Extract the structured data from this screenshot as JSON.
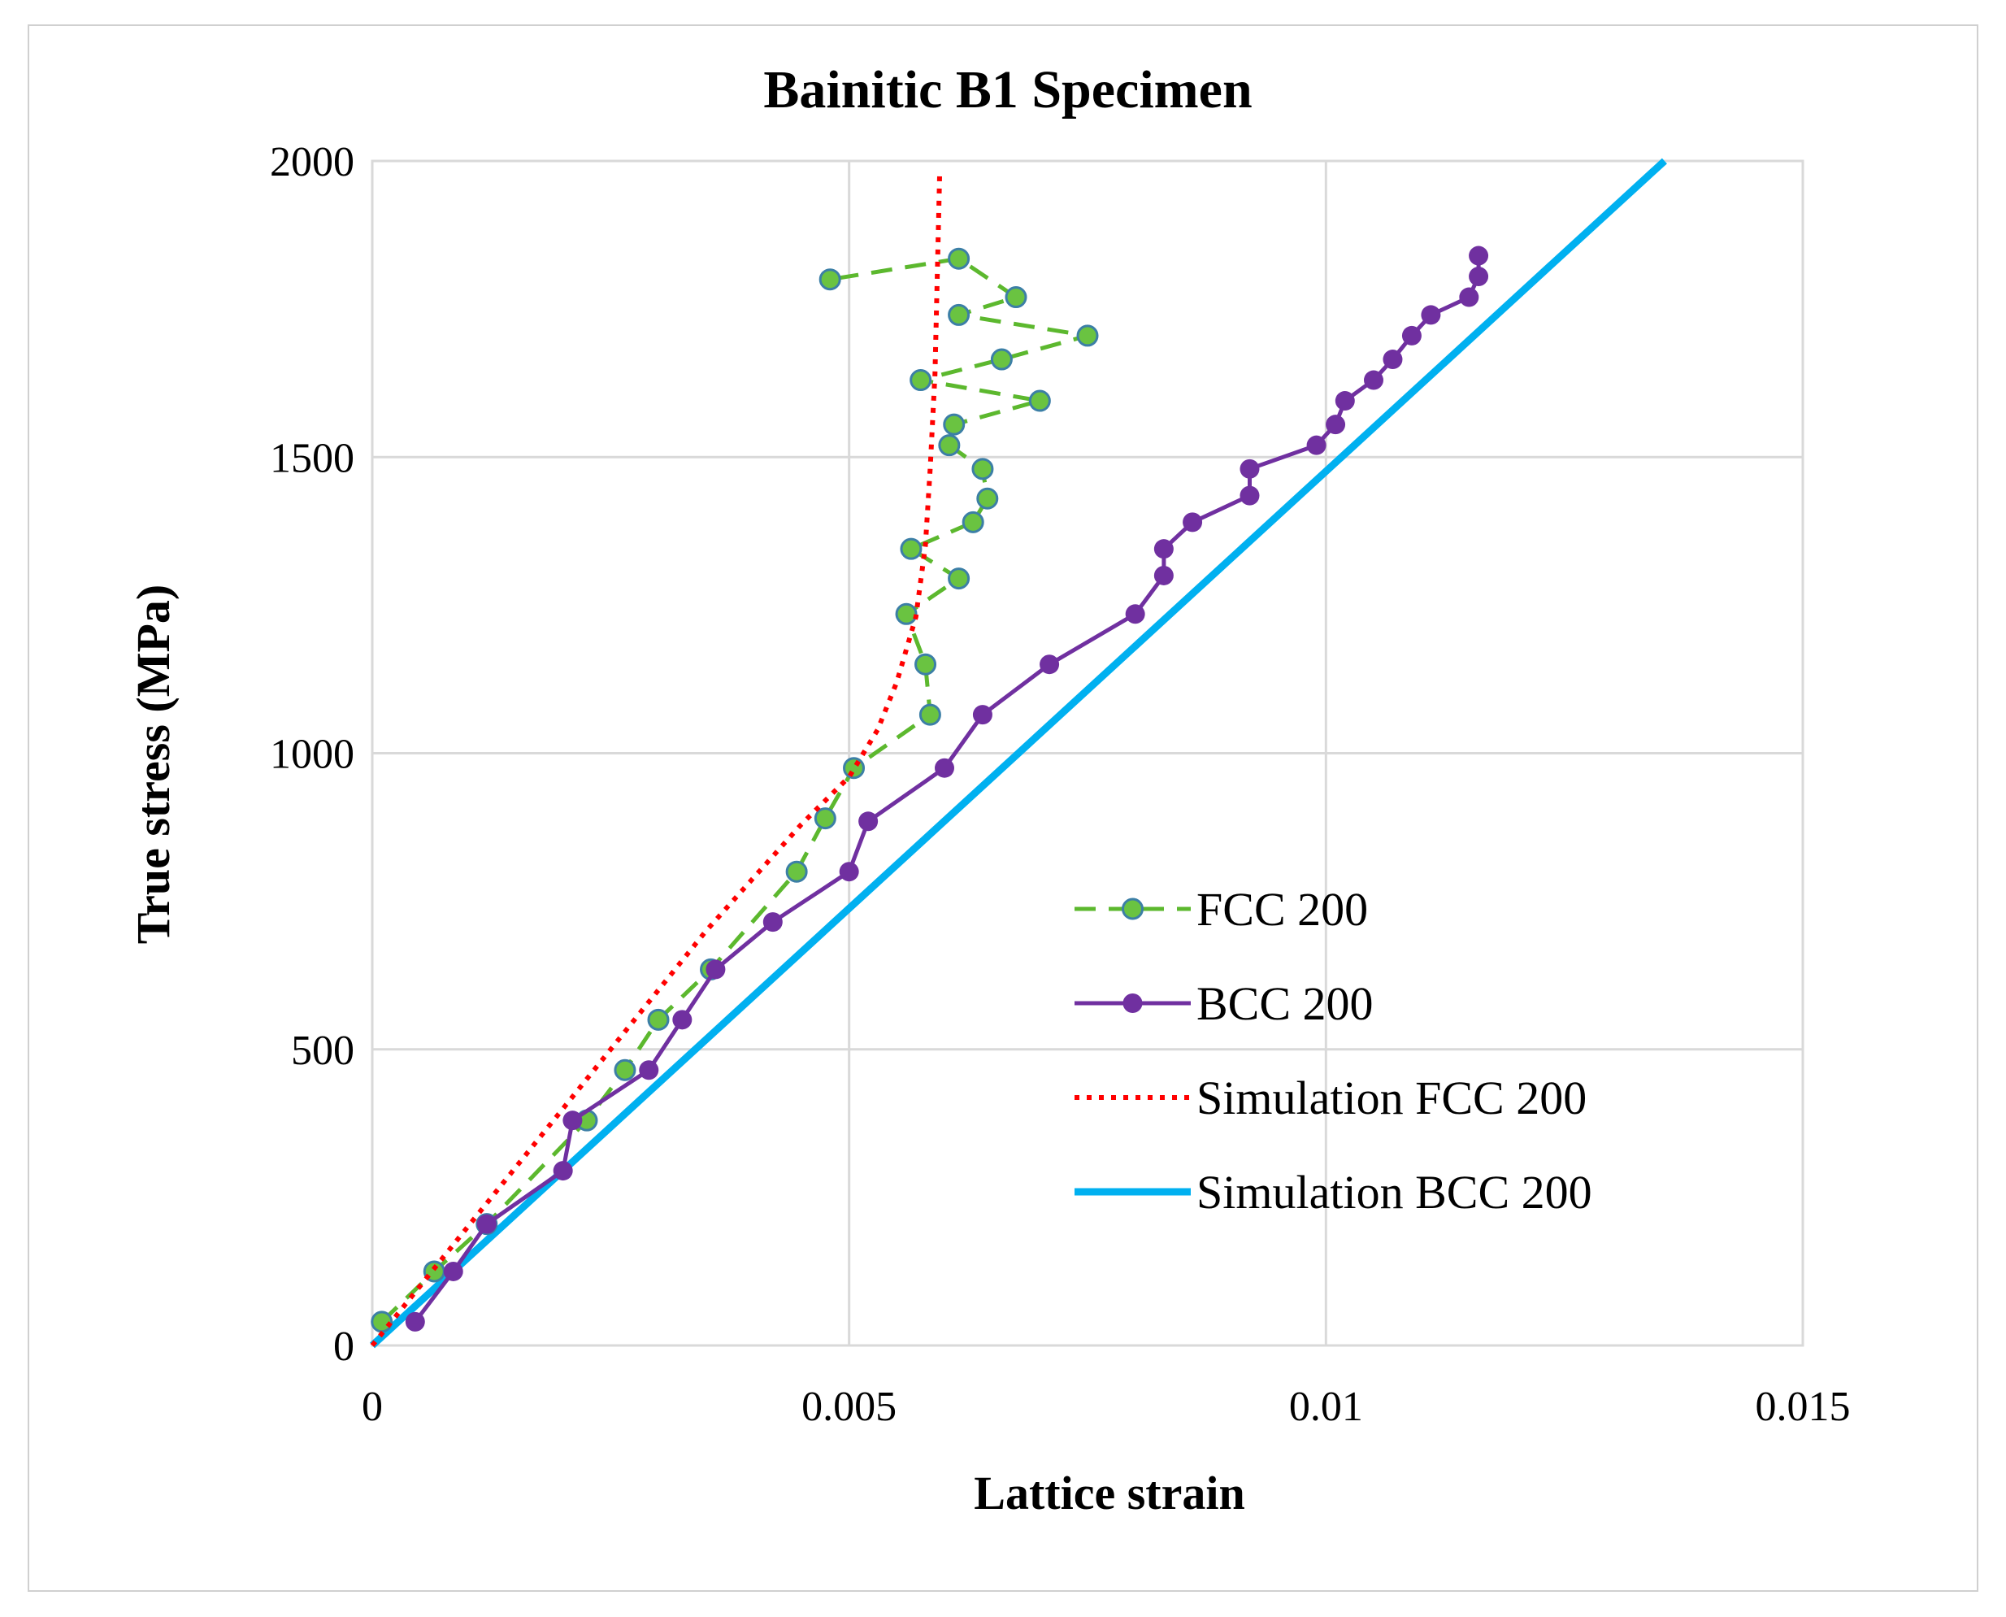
{
  "chart_data": {
    "type": "scatter",
    "title": "Bainitic B1 Specimen",
    "xlabel": "Lattice strain",
    "ylabel": "True stress (MPa)",
    "xlim": [
      0,
      0.015
    ],
    "ylim": [
      0,
      2000
    ],
    "xticks": [
      0,
      0.005,
      0.01,
      0.015
    ],
    "xtick_labels": [
      "0",
      "0.005",
      "0.01",
      "0.015"
    ],
    "yticks": [
      0,
      500,
      1000,
      1500,
      2000
    ],
    "ytick_labels": [
      "0",
      "500",
      "1000",
      "1500",
      "2000"
    ],
    "grid": true,
    "legend_position": "center-right",
    "series": [
      {
        "name": "FCC 200",
        "style": "dashed-markers",
        "color": "#5cb82e",
        "marker_color": "#6ac341",
        "marker_edge": "#3c7fa6",
        "x": [
          0.0001,
          0.00065,
          0.0012,
          0.00225,
          0.00265,
          0.003,
          0.00355,
          0.00445,
          0.00475,
          0.00505,
          0.00585,
          0.0058,
          0.0056,
          0.00615,
          0.00565,
          0.0063,
          0.00645,
          0.0064,
          0.00605,
          0.0061,
          0.007,
          0.00575,
          0.0066,
          0.0075,
          0.00615,
          0.00675,
          0.00615,
          0.0048
        ],
        "y": [
          40,
          125,
          205,
          380,
          465,
          550,
          635,
          800,
          890,
          975,
          1065,
          1150,
          1235,
          1295,
          1345,
          1390,
          1430,
          1480,
          1520,
          1555,
          1595,
          1630,
          1665,
          1705,
          1740,
          1770,
          1835,
          1800
        ]
      },
      {
        "name": "BCC 200",
        "style": "solid-markers",
        "color": "#7030a0",
        "x": [
          0.00045,
          0.00085,
          0.0012,
          0.002,
          0.0021,
          0.0029,
          0.00325,
          0.0036,
          0.0042,
          0.005,
          0.0052,
          0.006,
          0.0064,
          0.0071,
          0.008,
          0.0083,
          0.0083,
          0.0086,
          0.0092,
          0.0092,
          0.0099,
          0.0101,
          0.0102,
          0.0105,
          0.0107,
          0.0109,
          0.0111,
          0.0115,
          0.0116,
          0.0116
        ],
        "y": [
          40,
          125,
          205,
          295,
          380,
          465,
          550,
          635,
          715,
          800,
          885,
          975,
          1065,
          1150,
          1235,
          1300,
          1345,
          1390,
          1435,
          1480,
          1520,
          1555,
          1595,
          1630,
          1665,
          1705,
          1740,
          1770,
          1805,
          1840
        ]
      },
      {
        "name": "Simulation FCC 200",
        "style": "dotted-line",
        "color": "#ff0000",
        "x": [
          0,
          0.001,
          0.002,
          0.003,
          0.0035,
          0.004,
          0.0045,
          0.005,
          0.0053,
          0.0055,
          0.0057,
          0.0058,
          0.00585,
          0.0059,
          0.00595
        ],
        "y": [
          0,
          200,
          400,
          600,
          700,
          790,
          880,
          960,
          1040,
          1120,
          1230,
          1350,
          1480,
          1640,
          1980
        ]
      },
      {
        "name": "Simulation BCC 200",
        "style": "solid-line",
        "color": "#00b0f0",
        "x": [
          0,
          0.01355
        ],
        "y": [
          0,
          2000
        ]
      }
    ]
  }
}
